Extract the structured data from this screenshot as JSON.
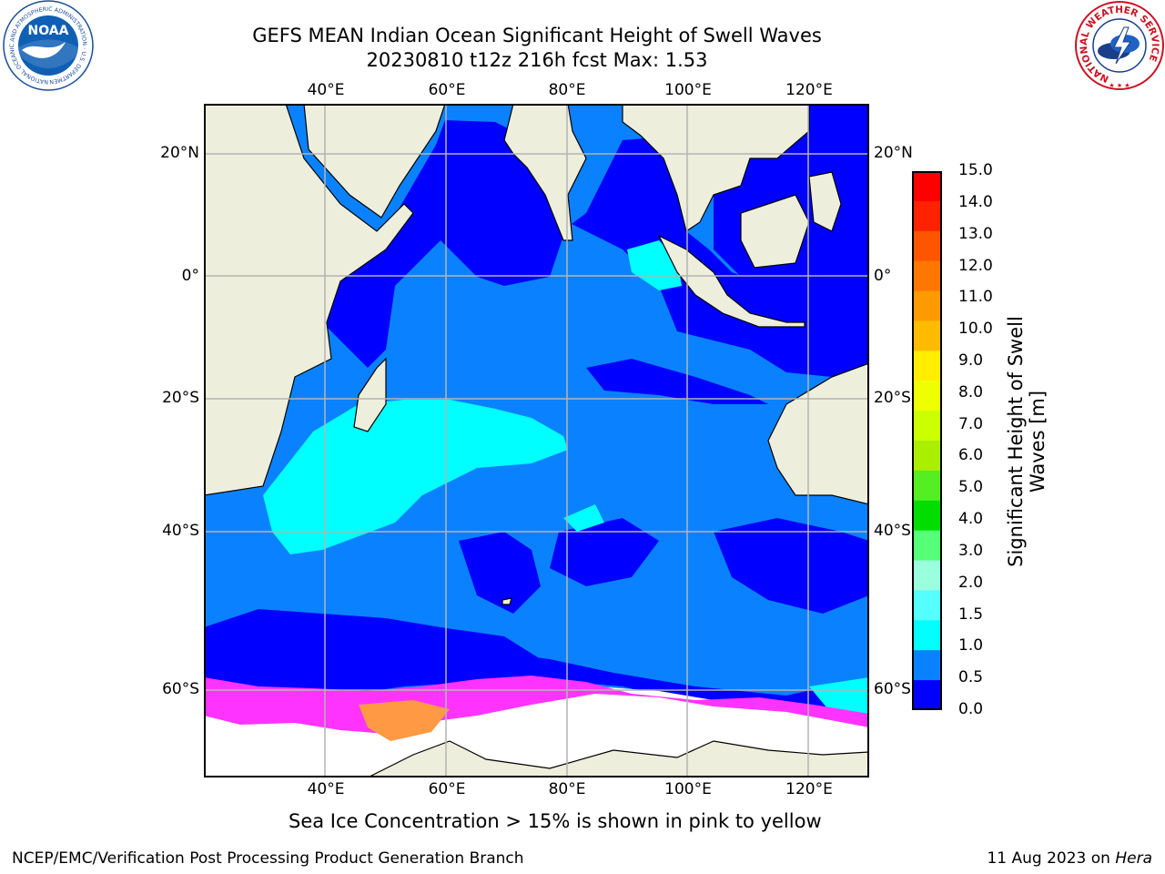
{
  "title": {
    "line1": "GEFS MEAN Indian Ocean Significant Height of Swell Waves",
    "line2": "20230810 t12z 216h fcst   Max: 1.53"
  },
  "map": {
    "lon_labels": [
      "40°E",
      "60°E",
      "80°E",
      "100°E",
      "120°E"
    ],
    "lat_labels": [
      "20°N",
      "0°",
      "20°S",
      "40°S",
      "60°S"
    ],
    "extent": {
      "lon": [
        20,
        130
      ],
      "lat": [
        -72,
        28
      ]
    },
    "colors": {
      "land": "#eeeedc",
      "sea_ice": "#ffffff",
      "grid": "#b4b4b4",
      "wave_0_0_5": "#0000ff",
      "wave_0_5_1_0": "#0a82ff",
      "wave_1_0_1_5": "#00ffff",
      "ice_pink": "#ff33ff",
      "ice_orange": "#ff9944"
    }
  },
  "colorbar": {
    "title": "Significant Height of Swell Waves [m]",
    "ticks": [
      "15.0",
      "14.0",
      "13.0",
      "12.0",
      "11.0",
      "10.0",
      "9.0",
      "8.0",
      "7.0",
      "6.0",
      "5.0",
      "4.0",
      "3.0",
      "2.0",
      "1.5",
      "1.0",
      "0.5",
      "0.0"
    ],
    "colors": [
      "#ff0000",
      "#ff2200",
      "#ff5500",
      "#ff7700",
      "#ff9900",
      "#ffbb00",
      "#ffee00",
      "#eeff00",
      "#ccff00",
      "#aaee00",
      "#55ee22",
      "#00dd00",
      "#55ff77",
      "#99ffdd",
      "#55ffff",
      "#00ffff",
      "#0a82ff",
      "#0000ff"
    ]
  },
  "caption": "Sea Ice Concentration > 15% is shown in pink to yellow",
  "footer": {
    "left": "NCEP/EMC/Verification Post Processing Product Generation Branch",
    "date": "11 Aug 2023 on ",
    "machine": "Hera"
  },
  "logos": {
    "noaa_text": "NOAA",
    "noaa_ring": "NATIONAL OCEANIC AND ATMOSPHERIC ADMINISTRATION · U.S. DEPARTMENT OF COMMERCE",
    "nws_ring": "NATIONAL WEATHER SERVICE"
  }
}
